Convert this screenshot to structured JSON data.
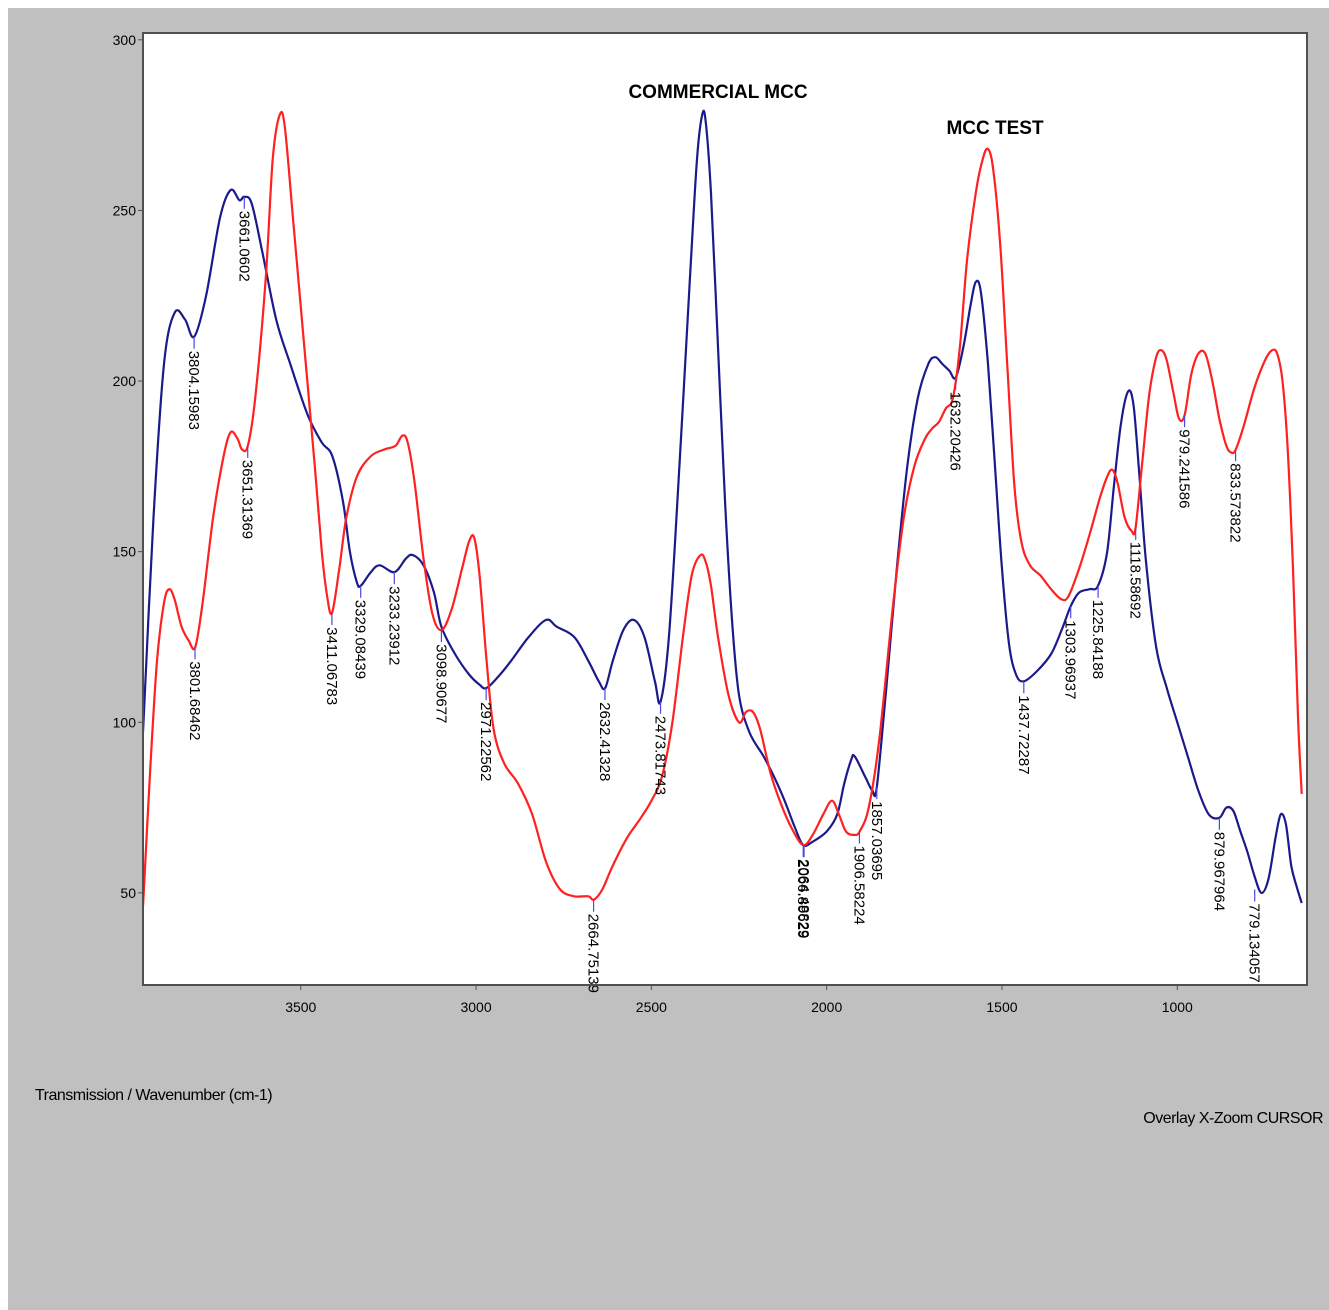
{
  "chart_data": {
    "type": "line",
    "xlabel": "Transmission / Wavenumber (cm-1)",
    "status_text": "Overlay X-Zoom CURSOR",
    "xlim": [
      3950,
      630
    ],
    "ylim": [
      23,
      302
    ],
    "x_reversed": true,
    "grid": false,
    "x_ticks": [
      3500,
      3000,
      2500,
      2000,
      1500,
      1000
    ],
    "y_ticks": [
      50,
      100,
      150,
      200,
      250,
      300
    ],
    "series_titles": [
      "COMMERCIAL MCC",
      "MCC TEST"
    ],
    "series": [
      {
        "color": "#1a1a8c",
        "points": [
          [
            3950,
            97
          ],
          [
            3920,
            160
          ],
          [
            3890,
            205
          ],
          [
            3860,
            220
          ],
          [
            3830,
            218
          ],
          [
            3804,
            213
          ],
          [
            3770,
            225
          ],
          [
            3730,
            248
          ],
          [
            3700,
            256
          ],
          [
            3675,
            253
          ],
          [
            3661,
            254
          ],
          [
            3640,
            252
          ],
          [
            3610,
            238
          ],
          [
            3570,
            218
          ],
          [
            3530,
            205
          ],
          [
            3480,
            190
          ],
          [
            3440,
            182
          ],
          [
            3410,
            178
          ],
          [
            3380,
            165
          ],
          [
            3360,
            150
          ],
          [
            3340,
            141
          ],
          [
            3329,
            140
          ],
          [
            3300,
            144
          ],
          [
            3275,
            146
          ],
          [
            3233,
            144
          ],
          [
            3200,
            148
          ],
          [
            3180,
            149
          ],
          [
            3150,
            146
          ],
          [
            3120,
            138
          ],
          [
            3099,
            128
          ],
          [
            3060,
            120
          ],
          [
            3020,
            114
          ],
          [
            2990,
            111
          ],
          [
            2971,
            110
          ],
          [
            2940,
            113
          ],
          [
            2900,
            118
          ],
          [
            2850,
            125
          ],
          [
            2800,
            130
          ],
          [
            2770,
            128
          ],
          [
            2720,
            125
          ],
          [
            2680,
            118
          ],
          [
            2650,
            112
          ],
          [
            2632,
            110
          ],
          [
            2610,
            118
          ],
          [
            2580,
            127
          ],
          [
            2550,
            130
          ],
          [
            2520,
            125
          ],
          [
            2490,
            112
          ],
          [
            2474,
            106
          ],
          [
            2450,
            125
          ],
          [
            2420,
            175
          ],
          [
            2390,
            230
          ],
          [
            2370,
            265
          ],
          [
            2355,
            278
          ],
          [
            2345,
            276
          ],
          [
            2330,
            255
          ],
          [
            2310,
            210
          ],
          [
            2290,
            165
          ],
          [
            2270,
            130
          ],
          [
            2250,
            108
          ],
          [
            2220,
            97
          ],
          [
            2180,
            90
          ],
          [
            2150,
            84
          ],
          [
            2120,
            77
          ],
          [
            2090,
            69
          ],
          [
            2067,
            64
          ],
          [
            2040,
            65
          ],
          [
            2000,
            68
          ],
          [
            1970,
            73
          ],
          [
            1950,
            82
          ],
          [
            1930,
            89
          ],
          [
            1920,
            90
          ],
          [
            1890,
            84
          ],
          [
            1870,
            80
          ],
          [
            1857,
            81
          ],
          [
            1830,
            110
          ],
          [
            1800,
            145
          ],
          [
            1770,
            175
          ],
          [
            1740,
            195
          ],
          [
            1710,
            205
          ],
          [
            1690,
            207
          ],
          [
            1670,
            205
          ],
          [
            1650,
            203
          ],
          [
            1632,
            201
          ],
          [
            1610,
            210
          ],
          [
            1590,
            222
          ],
          [
            1575,
            229
          ],
          [
            1560,
            226
          ],
          [
            1540,
            205
          ],
          [
            1520,
            175
          ],
          [
            1500,
            145
          ],
          [
            1480,
            123
          ],
          [
            1460,
            114
          ],
          [
            1438,
            112
          ],
          [
            1400,
            115
          ],
          [
            1360,
            120
          ],
          [
            1330,
            127
          ],
          [
            1304,
            134
          ],
          [
            1280,
            138
          ],
          [
            1250,
            139
          ],
          [
            1226,
            140
          ],
          [
            1200,
            150
          ],
          [
            1180,
            170
          ],
          [
            1160,
            188
          ],
          [
            1140,
            197
          ],
          [
            1125,
            193
          ],
          [
            1110,
            175
          ],
          [
            1090,
            148
          ],
          [
            1060,
            122
          ],
          [
            1030,
            110
          ],
          [
            1000,
            100
          ],
          [
            970,
            90
          ],
          [
            940,
            80
          ],
          [
            910,
            73
          ],
          [
            880,
            72
          ],
          [
            860,
            75
          ],
          [
            840,
            74
          ],
          [
            820,
            68
          ],
          [
            800,
            62
          ],
          [
            780,
            55
          ],
          [
            760,
            50
          ],
          [
            740,
            54
          ],
          [
            720,
            66
          ],
          [
            705,
            73
          ],
          [
            690,
            70
          ],
          [
            675,
            58
          ],
          [
            660,
            52
          ],
          [
            645,
            47
          ]
        ],
        "peak_labels": [
          {
            "x": 3804.15983,
            "y": 213,
            "label": "3804.15983"
          },
          {
            "x": 3661.0602,
            "y": 254,
            "label": "3661.0602"
          },
          {
            "x": 3329.08439,
            "y": 140,
            "label": "3329.08439"
          },
          {
            "x": 3233.23912,
            "y": 144,
            "label": "3233.23912"
          },
          {
            "x": 3098.90677,
            "y": 127,
            "label": "3098.90677"
          },
          {
            "x": 2971.22562,
            "y": 110,
            "label": "2971.22562"
          },
          {
            "x": 2632.41328,
            "y": 110,
            "label": "2632.41328"
          },
          {
            "x": 2473.81743,
            "y": 106,
            "label": "2473.81743"
          },
          {
            "x": 2066.89629,
            "y": 64,
            "label": "2066.89629"
          },
          {
            "x": 1857.03695,
            "y": 81,
            "label": "1857.03695"
          },
          {
            "x": 1632.20426,
            "y": 201,
            "label": "1632.20426"
          },
          {
            "x": 1437.72287,
            "y": 112,
            "label": "1437.72287"
          },
          {
            "x": 1303.96937,
            "y": 134,
            "label": "1303.96937"
          },
          {
            "x": 1225.84188,
            "y": 140,
            "label": "1225.84188"
          },
          {
            "x": 879.967964,
            "y": 72,
            "label": "879.967964"
          },
          {
            "x": 779.134057,
            "y": 51,
            "label": "779.134057"
          }
        ]
      },
      {
        "color": "#ff2020",
        "points": [
          [
            3950,
            46
          ],
          [
            3930,
            85
          ],
          [
            3910,
            118
          ],
          [
            3890,
            135
          ],
          [
            3875,
            139
          ],
          [
            3860,
            136
          ],
          [
            3840,
            128
          ],
          [
            3820,
            124
          ],
          [
            3801,
            122
          ],
          [
            3780,
            135
          ],
          [
            3750,
            160
          ],
          [
            3720,
            178
          ],
          [
            3700,
            185
          ],
          [
            3680,
            183
          ],
          [
            3668,
            180
          ],
          [
            3651,
            181
          ],
          [
            3630,
            195
          ],
          [
            3600,
            230
          ],
          [
            3580,
            265
          ],
          [
            3560,
            278
          ],
          [
            3545,
            274
          ],
          [
            3520,
            245
          ],
          [
            3490,
            210
          ],
          [
            3460,
            175
          ],
          [
            3440,
            150
          ],
          [
            3425,
            137
          ],
          [
            3411,
            132
          ],
          [
            3390,
            145
          ],
          [
            3370,
            160
          ],
          [
            3340,
            172
          ],
          [
            3300,
            178
          ],
          [
            3260,
            180
          ],
          [
            3230,
            181
          ],
          [
            3210,
            184
          ],
          [
            3195,
            182
          ],
          [
            3175,
            170
          ],
          [
            3150,
            148
          ],
          [
            3125,
            132
          ],
          [
            3099,
            127
          ],
          [
            3070,
            133
          ],
          [
            3040,
            145
          ],
          [
            3020,
            153
          ],
          [
            3005,
            154
          ],
          [
            2990,
            143
          ],
          [
            2970,
            118
          ],
          [
            2950,
            98
          ],
          [
            2920,
            88
          ],
          [
            2880,
            82
          ],
          [
            2840,
            73
          ],
          [
            2800,
            59
          ],
          [
            2760,
            51
          ],
          [
            2720,
            49
          ],
          [
            2680,
            49
          ],
          [
            2664,
            48
          ],
          [
            2640,
            51
          ],
          [
            2610,
            58
          ],
          [
            2570,
            66
          ],
          [
            2530,
            72
          ],
          [
            2500,
            77
          ],
          [
            2470,
            84
          ],
          [
            2440,
            100
          ],
          [
            2410,
            125
          ],
          [
            2385,
            143
          ],
          [
            2360,
            149
          ],
          [
            2345,
            147
          ],
          [
            2330,
            140
          ],
          [
            2310,
            125
          ],
          [
            2280,
            108
          ],
          [
            2250,
            100
          ],
          [
            2230,
            103
          ],
          [
            2210,
            103
          ],
          [
            2190,
            98
          ],
          [
            2160,
            85
          ],
          [
            2130,
            76
          ],
          [
            2100,
            69
          ],
          [
            2067,
            64
          ],
          [
            2040,
            67
          ],
          [
            2010,
            73
          ],
          [
            1985,
            77
          ],
          [
            1965,
            73
          ],
          [
            1945,
            68
          ],
          [
            1922,
            67
          ],
          [
            1906,
            68
          ],
          [
            1880,
            75
          ],
          [
            1850,
            95
          ],
          [
            1810,
            135
          ],
          [
            1780,
            160
          ],
          [
            1750,
            175
          ],
          [
            1720,
            183
          ],
          [
            1700,
            186
          ],
          [
            1680,
            188
          ],
          [
            1660,
            192
          ],
          [
            1640,
            195
          ],
          [
            1620,
            210
          ],
          [
            1600,
            235
          ],
          [
            1575,
            255
          ],
          [
            1555,
            265
          ],
          [
            1540,
            268
          ],
          [
            1525,
            262
          ],
          [
            1505,
            240
          ],
          [
            1485,
            205
          ],
          [
            1465,
            170
          ],
          [
            1445,
            153
          ],
          [
            1420,
            146
          ],
          [
            1390,
            143
          ],
          [
            1360,
            139
          ],
          [
            1330,
            136
          ],
          [
            1310,
            137
          ],
          [
            1280,
            145
          ],
          [
            1250,
            155
          ],
          [
            1220,
            166
          ],
          [
            1200,
            172
          ],
          [
            1185,
            174
          ],
          [
            1170,
            170
          ],
          [
            1150,
            160
          ],
          [
            1130,
            156
          ],
          [
            1119,
            157
          ],
          [
            1100,
            176
          ],
          [
            1080,
            196
          ],
          [
            1060,
            207
          ],
          [
            1045,
            209
          ],
          [
            1030,
            206
          ],
          [
            1010,
            196
          ],
          [
            995,
            189
          ],
          [
            979,
            190
          ],
          [
            960,
            202
          ],
          [
            940,
            208
          ],
          [
            920,
            208
          ],
          [
            900,
            200
          ],
          [
            880,
            189
          ],
          [
            860,
            181
          ],
          [
            845,
            179
          ],
          [
            833,
            180
          ],
          [
            810,
            187
          ],
          [
            780,
            198
          ],
          [
            750,
            206
          ],
          [
            730,
            209
          ],
          [
            715,
            208
          ],
          [
            700,
            200
          ],
          [
            685,
            180
          ],
          [
            670,
            145
          ],
          [
            655,
            100
          ],
          [
            645,
            79
          ]
        ],
        "peak_labels": [
          {
            "x": 3801.68462,
            "y": 122,
            "label": "3801.68462"
          },
          {
            "x": 3651.31369,
            "y": 181,
            "label": "3651.31369"
          },
          {
            "x": 3411.06783,
            "y": 132,
            "label": "3411.06783"
          },
          {
            "x": 2664.75139,
            "y": 48,
            "label": "2664.75139"
          },
          {
            "x": 2064.48829,
            "y": 64,
            "label": "2064.48829"
          },
          {
            "x": 1906.58224,
            "y": 68,
            "label": "1906.58224"
          },
          {
            "x": 1118.58692,
            "y": 157,
            "label": "1118.58692"
          },
          {
            "x": 979.241586,
            "y": 190,
            "label": "979.241586"
          },
          {
            "x": 833.573822,
            "y": 180,
            "label": "833.573822"
          }
        ]
      }
    ]
  }
}
